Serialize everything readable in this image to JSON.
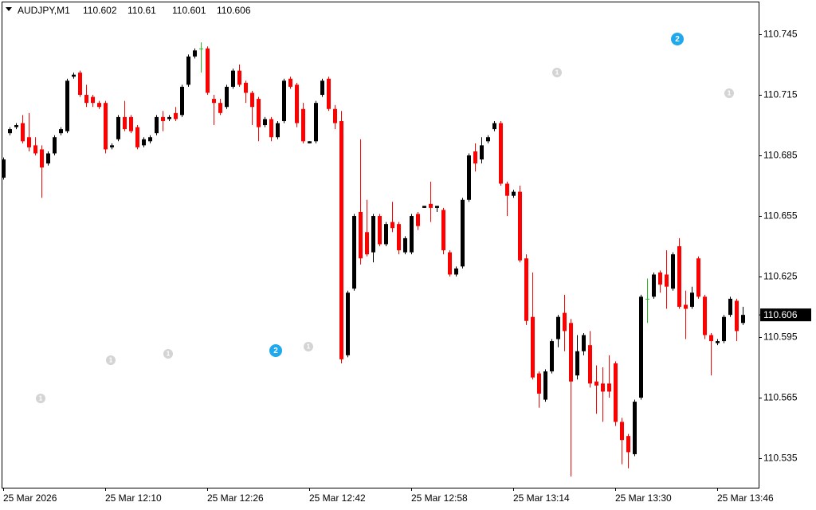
{
  "chart_data": {
    "type": "candlestick",
    "symbol": "AUDJPY,M1",
    "categories": [
      "25 Mar 2026",
      null,
      null,
      null,
      null,
      null,
      null,
      null,
      null,
      null,
      null,
      null,
      null,
      null,
      null,
      null,
      "25 Mar 12:10",
      null,
      null,
      null,
      null,
      null,
      null,
      null,
      null,
      null,
      null,
      null,
      null,
      null,
      null,
      null,
      "25 Mar 12:26",
      null,
      null,
      null,
      null,
      null,
      null,
      null,
      null,
      null,
      null,
      null,
      null,
      null,
      null,
      null,
      "25 Mar 12:42",
      null,
      null,
      null,
      null,
      null,
      null,
      null,
      null,
      null,
      null,
      null,
      null,
      null,
      null,
      null,
      "25 Mar 12:58",
      null,
      null,
      null,
      null,
      null,
      null,
      null,
      null,
      null,
      null,
      null,
      null,
      null,
      null,
      null,
      "25 Mar 13:14",
      null,
      null,
      null,
      null,
      null,
      null,
      null,
      null,
      null,
      null,
      null,
      null,
      null,
      null,
      null,
      "25 Mar 13:30",
      null,
      null,
      null,
      null,
      null,
      null,
      null,
      null,
      null,
      null,
      null,
      null,
      null,
      null,
      null,
      "25 Mar 13:46",
      null,
      null,
      null,
      null
    ],
    "open": [
      110.674,
      110.696,
      110.699,
      110.701,
      110.694,
      110.69,
      110.688,
      110.681,
      110.686,
      110.696,
      110.697,
      110.724,
      110.726,
      110.715,
      110.714,
      110.711,
      110.711,
      110.689,
      110.693,
      110.704,
      110.704,
      110.699,
      110.69,
      110.692,
      110.696,
      110.704,
      110.703,
      110.706,
      110.705,
      110.72,
      110.734,
      110.738,
      110.738,
      110.713,
      110.711,
      110.709,
      110.719,
      110.727,
      110.721,
      110.716,
      110.713,
      110.7,
      110.703,
      110.694,
      110.702,
      110.723,
      110.72,
      110.708,
      110.691,
      110.692,
      110.715,
      110.723,
      110.708,
      110.702,
      110.586,
      110.619,
      110.657,
      110.647,
      110.637,
      110.655,
      110.641,
      110.652,
      110.651,
      110.637,
      110.637,
      110.656,
      110.659,
      110.661,
      110.659,
      110.658,
      110.637,
      110.626,
      110.63,
      110.663,
      110.687,
      110.683,
      110.692,
      110.698,
      110.701,
      110.671,
      110.665,
      110.667,
      110.634,
      110.605,
      110.577,
      110.564,
      110.578,
      110.594,
      110.607,
      110.602,
      110.576,
      110.588,
      110.591,
      110.573,
      110.572,
      110.572,
      110.582,
      110.553,
      110.546,
      110.537,
      110.565,
      110.614,
      110.615,
      110.627,
      110.626,
      110.619,
      110.64,
      110.611,
      110.61,
      110.634,
      110.615,
      110.596,
      110.592,
      110.593,
      110.606,
      110.613,
      110.602
    ],
    "high": [
      110.684,
      110.699,
      110.701,
      110.705,
      110.706,
      110.694,
      110.69,
      110.687,
      110.695,
      110.699,
      110.723,
      110.726,
      110.727,
      110.72,
      110.715,
      110.712,
      110.712,
      110.691,
      110.705,
      110.712,
      110.705,
      110.7,
      110.694,
      110.695,
      110.705,
      110.707,
      110.705,
      110.709,
      110.72,
      110.735,
      110.738,
      110.741,
      110.739,
      110.715,
      110.713,
      110.72,
      110.728,
      110.73,
      110.722,
      110.717,
      110.714,
      110.704,
      110.704,
      110.702,
      110.723,
      110.724,
      110.721,
      110.711,
      110.692,
      110.712,
      110.723,
      110.724,
      110.71,
      110.707,
      110.618,
      110.656,
      110.693,
      110.663,
      110.656,
      110.656,
      110.652,
      110.662,
      110.652,
      110.645,
      110.656,
      110.657,
      110.66,
      110.672,
      110.66,
      110.659,
      110.638,
      110.63,
      110.664,
      110.686,
      110.691,
      110.694,
      110.695,
      110.702,
      110.702,
      110.672,
      110.668,
      110.67,
      110.636,
      110.627,
      110.578,
      110.579,
      110.594,
      110.606,
      110.616,
      110.604,
      110.596,
      110.597,
      110.598,
      110.581,
      110.58,
      110.586,
      110.583,
      110.555,
      110.547,
      110.564,
      110.616,
      110.624,
      110.627,
      110.628,
      110.638,
      110.637,
      110.644,
      110.618,
      110.62,
      110.635,
      110.616,
      110.597,
      110.594,
      110.606,
      110.615,
      110.614,
      110.61
    ],
    "low": [
      110.673,
      110.695,
      110.698,
      110.691,
      110.687,
      110.685,
      110.664,
      110.68,
      110.685,
      110.695,
      110.696,
      110.723,
      110.714,
      110.709,
      110.709,
      110.708,
      110.686,
      110.688,
      110.692,
      110.697,
      110.696,
      110.688,
      110.689,
      110.691,
      110.695,
      110.697,
      110.702,
      110.702,
      110.704,
      110.719,
      110.733,
      110.726,
      110.715,
      110.7,
      110.705,
      110.708,
      110.718,
      110.719,
      110.711,
      110.7,
      110.692,
      110.699,
      110.692,
      110.693,
      110.701,
      110.718,
      110.699,
      110.691,
      110.691,
      110.691,
      110.714,
      110.707,
      110.698,
      110.582,
      110.585,
      110.618,
      110.631,
      110.635,
      110.632,
      110.64,
      110.64,
      110.647,
      110.636,
      110.636,
      110.636,
      110.648,
      110.659,
      110.652,
      110.657,
      110.636,
      110.625,
      110.625,
      110.629,
      110.662,
      110.677,
      110.681,
      110.691,
      110.697,
      110.67,
      110.655,
      110.664,
      110.632,
      110.601,
      110.574,
      110.56,
      110.563,
      110.577,
      110.59,
      110.588,
      110.526,
      110.574,
      110.586,
      110.57,
      110.557,
      110.553,
      110.565,
      110.551,
      110.532,
      110.53,
      110.536,
      110.564,
      110.602,
      110.614,
      110.617,
      110.609,
      110.618,
      110.609,
      110.594,
      110.609,
      110.614,
      110.594,
      110.576,
      110.591,
      110.592,
      110.605,
      110.593,
      110.601
    ],
    "close": [
      110.683,
      110.698,
      110.7,
      110.692,
      110.689,
      110.686,
      110.679,
      110.686,
      110.694,
      110.698,
      110.722,
      110.725,
      110.715,
      110.711,
      110.711,
      110.709,
      110.688,
      110.69,
      110.704,
      110.698,
      110.697,
      110.689,
      110.693,
      110.694,
      110.704,
      110.702,
      110.704,
      110.703,
      110.719,
      110.734,
      110.737,
      110.738,
      110.716,
      110.711,
      110.706,
      110.719,
      110.727,
      110.72,
      110.716,
      110.709,
      110.699,
      110.703,
      110.694,
      110.701,
      110.722,
      110.719,
      110.701,
      110.692,
      110.692,
      110.711,
      110.722,
      110.708,
      110.701,
      110.584,
      110.617,
      110.655,
      110.634,
      110.636,
      110.655,
      110.641,
      110.651,
      110.649,
      110.638,
      110.644,
      110.655,
      110.65,
      110.66,
      110.659,
      110.66,
      110.638,
      110.626,
      110.629,
      110.663,
      110.685,
      110.681,
      110.69,
      110.694,
      110.701,
      110.671,
      110.665,
      110.667,
      110.633,
      110.603,
      110.575,
      110.567,
      110.578,
      110.593,
      110.605,
      110.598,
      110.573,
      110.588,
      110.596,
      110.572,
      110.571,
      110.568,
      110.568,
      110.553,
      110.544,
      110.538,
      110.563,
      110.615,
      110.614,
      110.626,
      110.621,
      110.62,
      110.636,
      110.61,
      110.609,
      110.617,
      110.615,
      110.596,
      110.593,
      110.593,
      110.605,
      110.614,
      110.598,
      110.606
    ],
    "up_color": "#000000",
    "down_color": "#ff0000",
    "doji_color": "#22bb22",
    "ylim": [
      110.5204,
      110.7612
    ],
    "yticks": [
      110.535,
      110.565,
      110.595,
      110.625,
      110.655,
      110.685,
      110.715,
      110.745
    ],
    "grid": false,
    "events": [
      1,
      1,
      1,
      2,
      1,
      1,
      2,
      1
    ]
  }
}
